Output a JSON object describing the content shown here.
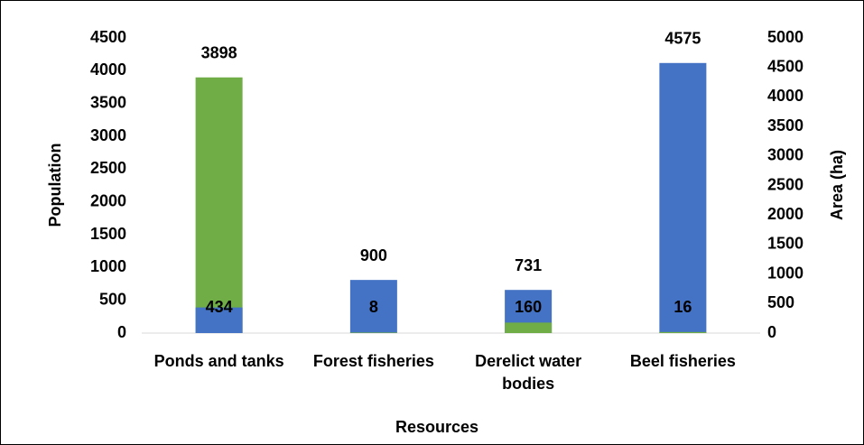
{
  "chart_data": {
    "type": "bar",
    "categories": [
      "Ponds and tanks",
      "Forest fisheries",
      "Derelict water bodies",
      "Beel fisheries"
    ],
    "series": [
      {
        "color": "#70ad47",
        "axis": "y",
        "values": [
          3898,
          8,
          160,
          16
        ]
      },
      {
        "color": "#4472c4",
        "axis": "y2",
        "values": [
          434,
          900,
          731,
          4575
        ]
      }
    ],
    "ylabel": "Population",
    "y2label": "Area (ha)",
    "xlabel": "Resources",
    "ylim": [
      0,
      4500
    ],
    "yticks": [
      0,
      500,
      1000,
      1500,
      2000,
      2500,
      3000,
      3500,
      4000,
      4500
    ],
    "y2lim": [
      0,
      5000
    ],
    "y2ticks": [
      0,
      500,
      1000,
      1500,
      2000,
      2500,
      3000,
      3500,
      4000,
      4500,
      5000
    ]
  }
}
